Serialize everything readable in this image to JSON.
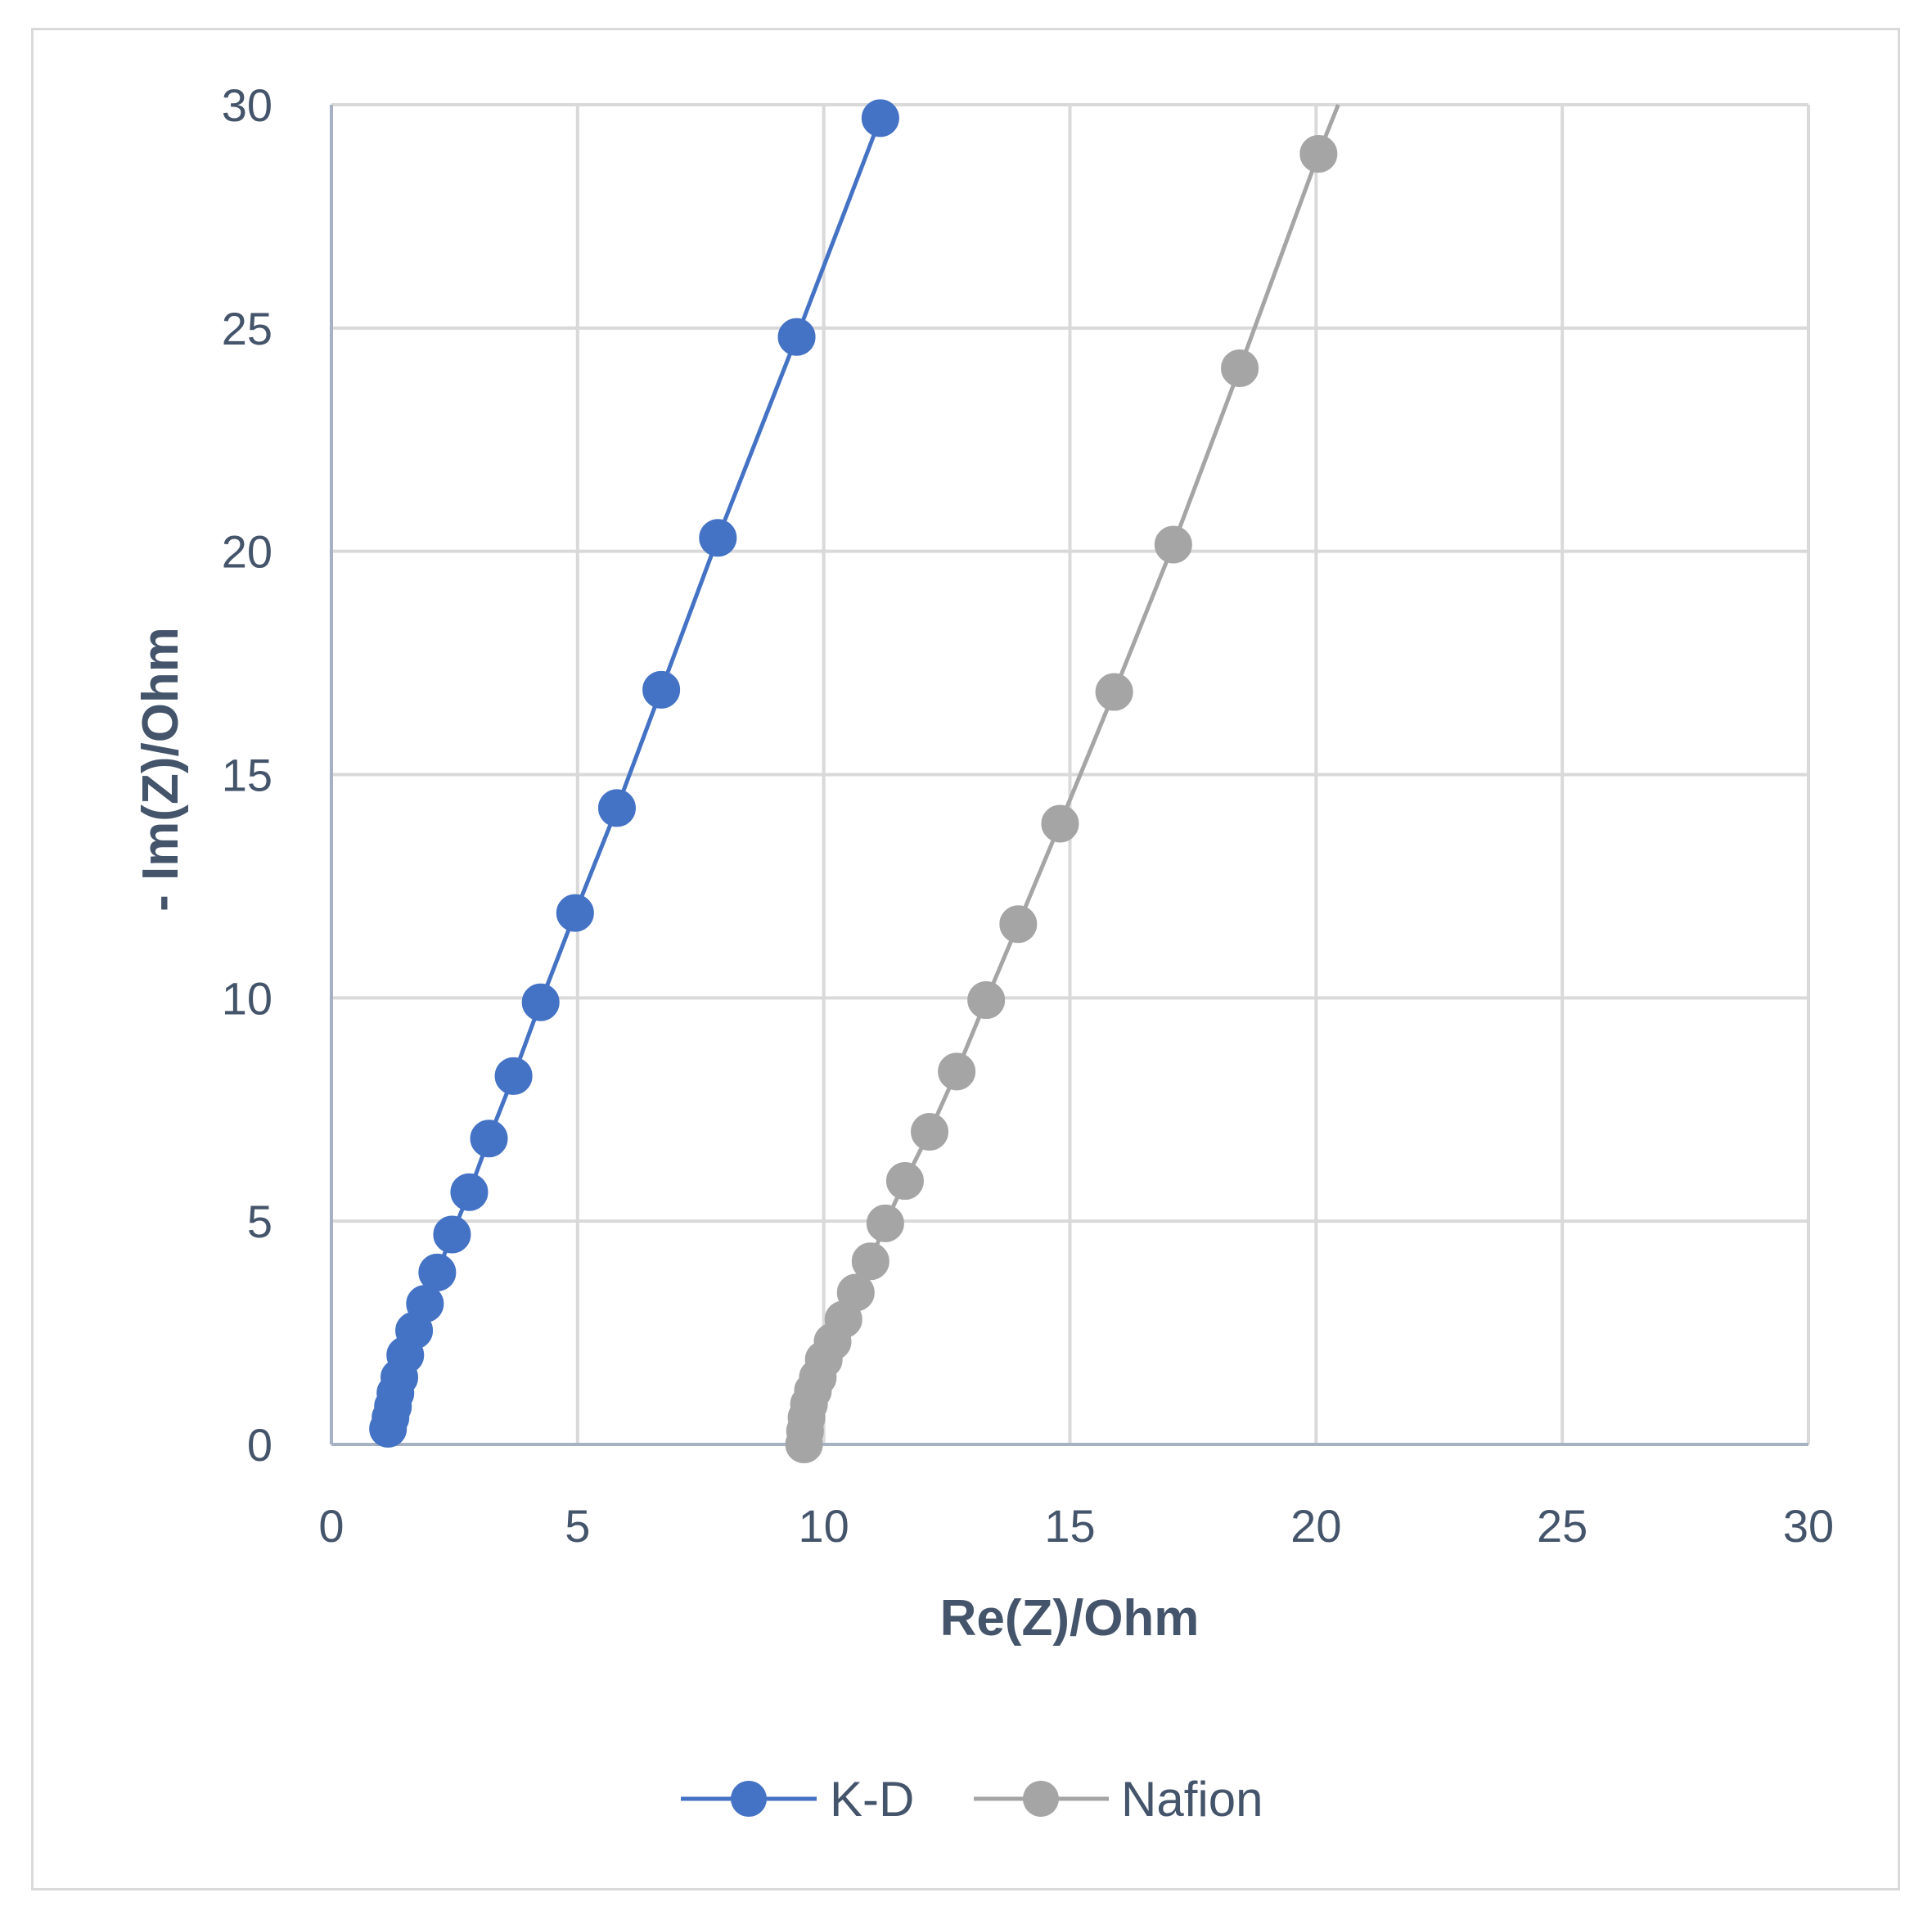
{
  "chart_data": {
    "type": "scatter",
    "xlabel": "Re(Z)/Ohm",
    "ylabel": "- Im(Z)/Ohm",
    "xlim": [
      0,
      30
    ],
    "ylim": [
      0,
      30
    ],
    "x_ticks": [
      "0",
      "5",
      "10",
      "15",
      "20",
      "25",
      "30"
    ],
    "y_ticks": [
      "0",
      "5",
      "10",
      "15",
      "20",
      "25",
      "30"
    ],
    "grid": true,
    "legend_position": "bottom",
    "series": [
      {
        "name": "K-D",
        "color": "#4472c4",
        "marker": "circle",
        "line": true,
        "points": [
          [
            1.15,
            0.35
          ],
          [
            1.2,
            0.6
          ],
          [
            1.25,
            0.85
          ],
          [
            1.3,
            1.15
          ],
          [
            1.38,
            1.5
          ],
          [
            1.5,
            2.0
          ],
          [
            1.68,
            2.55
          ],
          [
            1.9,
            3.15
          ],
          [
            2.15,
            3.85
          ],
          [
            2.45,
            4.7
          ],
          [
            2.8,
            5.65
          ],
          [
            3.2,
            6.85
          ],
          [
            3.7,
            8.25
          ],
          [
            4.25,
            9.9
          ],
          [
            4.95,
            11.9
          ],
          [
            5.8,
            14.25
          ],
          [
            6.7,
            16.9
          ],
          [
            7.85,
            20.3
          ],
          [
            9.45,
            24.8
          ],
          [
            11.15,
            29.7
          ]
        ]
      },
      {
        "name": "Nafion",
        "color": "#a5a5a5",
        "marker": "circle",
        "line": true,
        "points": [
          [
            9.6,
            0.0
          ],
          [
            9.62,
            0.3
          ],
          [
            9.65,
            0.6
          ],
          [
            9.7,
            0.9
          ],
          [
            9.78,
            1.2
          ],
          [
            9.88,
            1.5
          ],
          [
            10.0,
            1.9
          ],
          [
            10.18,
            2.3
          ],
          [
            10.4,
            2.8
          ],
          [
            10.65,
            3.4
          ],
          [
            10.95,
            4.1
          ],
          [
            11.25,
            4.95
          ],
          [
            11.65,
            5.9
          ],
          [
            12.15,
            7.0
          ],
          [
            12.7,
            8.35
          ],
          [
            13.3,
            9.95
          ],
          [
            13.95,
            11.65
          ],
          [
            14.8,
            13.9
          ],
          [
            15.9,
            16.85
          ],
          [
            17.1,
            20.15
          ],
          [
            18.45,
            24.1
          ],
          [
            20.05,
            28.9
          ],
          [
            20.45,
            30.0
          ]
        ]
      }
    ]
  }
}
